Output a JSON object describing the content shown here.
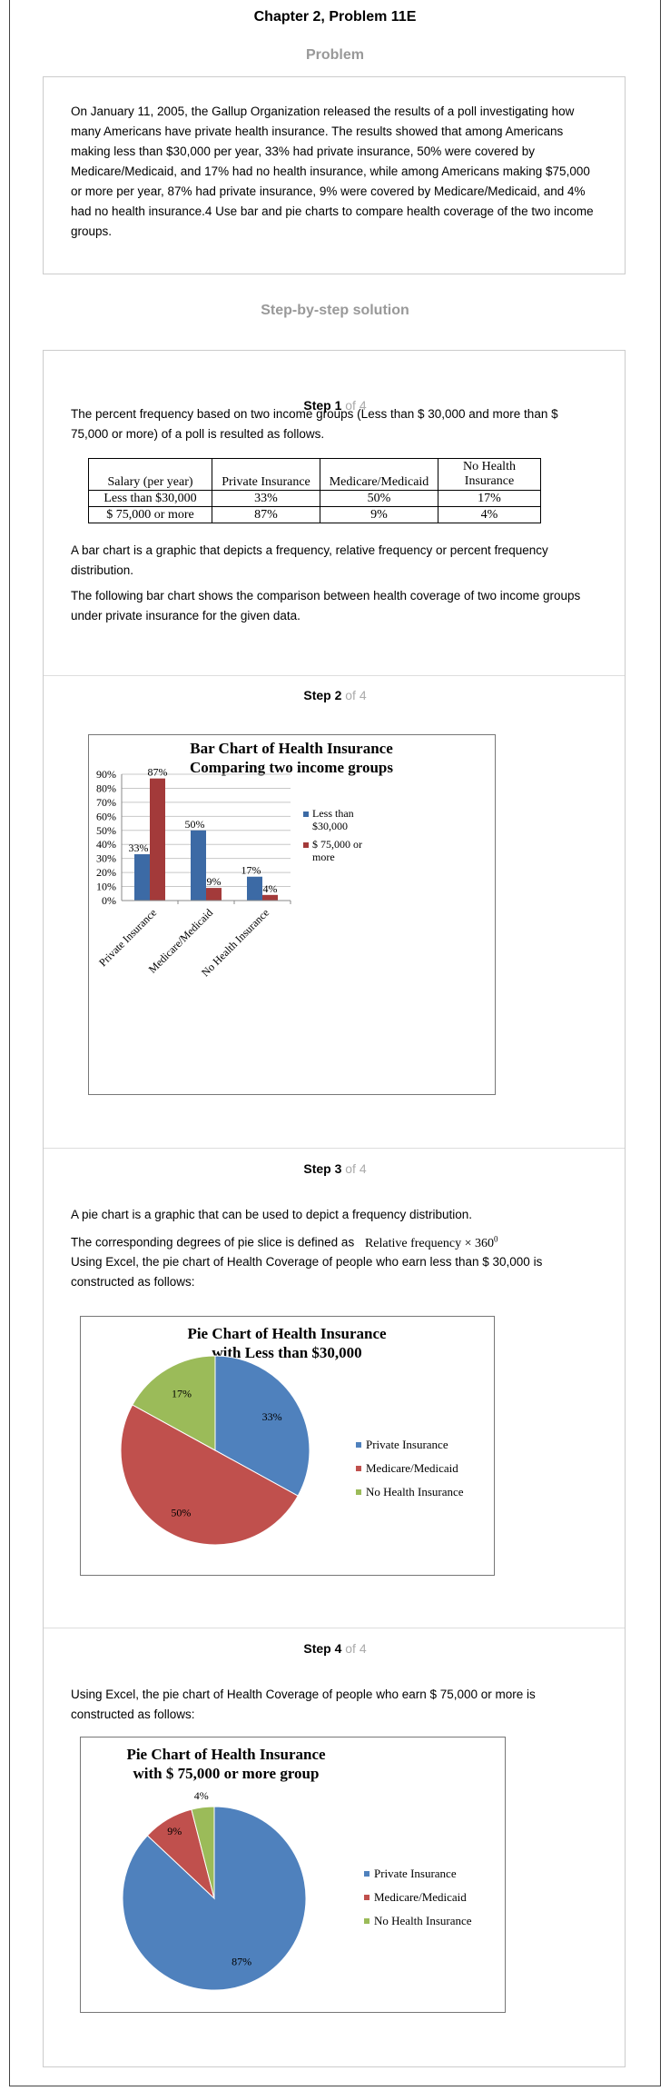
{
  "header": {
    "title": "Chapter 2, Problem 11E",
    "problem_heading": "Problem"
  },
  "problem": {
    "text": "On January 11, 2005, the Gallup Organization released the results of a poll investigating how many Americans have private health insurance. The results showed that among Americans making less than $30,000 per year, 33% had private insurance, 50% were covered by Medicare/Medicaid, and 17% had no health insurance, while among Americans making $75,000 or more per year, 87% had private insurance, 9% were covered by Medicare/Medicaid, and 4% had no health insurance.4 Use bar and pie charts to compare health coverage of the two income groups."
  },
  "solution_heading": "Step-by-step solution",
  "steps": [
    {
      "label": "Step 1",
      "of": "of 4",
      "intro": "The percent frequency based on two income groups (Less than $ 30,000 and more than $ 75,000 or more) of a poll is resulted as follows.",
      "table": {
        "headers": [
          "Salary (per year)",
          "Private Insurance",
          "Medicare/Medicaid",
          "No Health Insurance"
        ],
        "rows": [
          [
            "Less than $30,000",
            "33%",
            "50%",
            "17%"
          ],
          [
            "$ 75,000 or more",
            "87%",
            "9%",
            "4%"
          ]
        ]
      },
      "p2": "A bar chart is a graphic that depicts a frequency, relative frequency or percent frequency distribution.",
      "p3": "The following bar chart shows the comparison between health coverage of two income groups under private insurance for the given data."
    },
    {
      "label": "Step 2",
      "of": "of 4"
    },
    {
      "label": "Step 3",
      "of": "of 4",
      "p1": "A pie chart is a graphic that can be used to depict a frequency distribution.",
      "p2": "The corresponding degrees of pie slice is defined as",
      "formula": "Relative frequency × 360",
      "formula_sup": "0",
      "p3": "Using Excel, the pie chart of Health Coverage of people who earn less than $ 30,000 is constructed as follows:"
    },
    {
      "label": "Step 4",
      "of": "of 4",
      "p1": "Using Excel, the pie chart of Health Coverage of people who earn $ 75,000 or more is constructed as follows:"
    }
  ],
  "colors": {
    "blue": "#3c6aa5",
    "red": "#a33a3a",
    "pie_blue": "#4f81bd",
    "pie_red": "#c0504d",
    "pie_green": "#9bbb59"
  },
  "chart_data": [
    {
      "type": "bar",
      "title": "Bar Chart of Health Insurance",
      "subtitle": "Comparing two income groups",
      "categories": [
        "Private Insurance",
        "Medicare/Medicaid",
        "No Health Insurance"
      ],
      "series": [
        {
          "name": "Less than $30,000",
          "values": [
            33,
            50,
            17
          ],
          "labels": [
            "33%",
            "50%",
            "17%"
          ]
        },
        {
          "name": "$ 75,000 or more",
          "values": [
            87,
            9,
            4
          ],
          "labels": [
            "87%",
            "9%",
            "4%"
          ]
        }
      ],
      "yticks": [
        "0%",
        "10%",
        "20%",
        "30%",
        "40%",
        "50%",
        "60%",
        "70%",
        "80%",
        "90%"
      ],
      "ylim": [
        0,
        90
      ],
      "grid": true,
      "legend": "right"
    },
    {
      "type": "pie",
      "title": "Pie Chart of Health Insurance",
      "subtitle": "with Less than $30,000",
      "labels": [
        "Private Insurance",
        "Medicare/Medicaid",
        "No Health Insurance"
      ],
      "values": [
        33,
        50,
        17
      ],
      "value_labels": [
        "33%",
        "50%",
        "17%"
      ],
      "legend": "right"
    },
    {
      "type": "pie",
      "title": "Pie Chart of Health Insurance",
      "subtitle": "with $ 75,000 or more group",
      "labels": [
        "Private Insurance",
        "Medicare/Medicaid",
        "No Health Insurance"
      ],
      "values": [
        87,
        9,
        4
      ],
      "value_labels": [
        "87%",
        "9%",
        "4%"
      ],
      "legend": "right"
    }
  ]
}
